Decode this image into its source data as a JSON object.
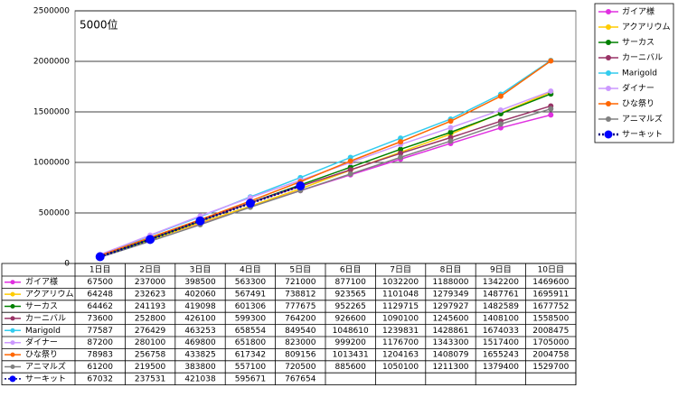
{
  "chart_data": {
    "type": "line",
    "annotation": "5000位",
    "categories": [
      "1日目",
      "2日目",
      "3日目",
      "4日目",
      "5日目",
      "6日目",
      "7日目",
      "8日目",
      "9日目",
      "10日目"
    ],
    "series": [
      {
        "name": "ガイア様",
        "color": "#e030e0",
        "values": [
          67500,
          237000,
          398500,
          563300,
          721000,
          877100,
          1032200,
          1188000,
          1342200,
          1469600
        ]
      },
      {
        "name": "アクアリウム",
        "color": "#ffcc00",
        "values": [
          64248,
          232623,
          402060,
          567491,
          738812,
          923565,
          1101048,
          1279349,
          1487761,
          1695911
        ]
      },
      {
        "name": "サーカス",
        "color": "#008000",
        "values": [
          64462,
          241193,
          419098,
          601306,
          777675,
          952265,
          1129715,
          1297927,
          1482589,
          1677752
        ]
      },
      {
        "name": "カーニバル",
        "color": "#993366",
        "values": [
          73600,
          252800,
          426100,
          599300,
          764200,
          926600,
          1090100,
          1245600,
          1408100,
          1558500
        ]
      },
      {
        "name": "Marigold",
        "color": "#33ccee",
        "values": [
          77587,
          276429,
          463253,
          658554,
          849540,
          1048610,
          1239831,
          1428861,
          1674033,
          2008475
        ]
      },
      {
        "name": "ダイナー",
        "color": "#cc99ff",
        "values": [
          87200,
          280100,
          469800,
          651800,
          823000,
          999200,
          1176700,
          1343300,
          1517400,
          1705000
        ]
      },
      {
        "name": "ひな祭り",
        "color": "#ff6600",
        "values": [
          78983,
          256758,
          433825,
          617342,
          809156,
          1013431,
          1204163,
          1408079,
          1655243,
          2004758
        ]
      },
      {
        "name": "アニマルズ",
        "color": "#808080",
        "values": [
          61200,
          219500,
          383800,
          557100,
          720500,
          885600,
          1050100,
          1211300,
          1379400,
          1529700
        ]
      },
      {
        "name": "サーキット",
        "color": "#0000ff",
        "dotted": true,
        "values": [
          67032,
          237531,
          421038,
          595671,
          767654,
          null,
          null,
          null,
          null,
          null
        ]
      }
    ],
    "ylim": [
      0,
      2500000
    ],
    "yticks": [
      0,
      500000,
      1000000,
      1500000,
      2000000,
      2500000
    ],
    "grid": true,
    "legend": "right",
    "data_table": true
  }
}
